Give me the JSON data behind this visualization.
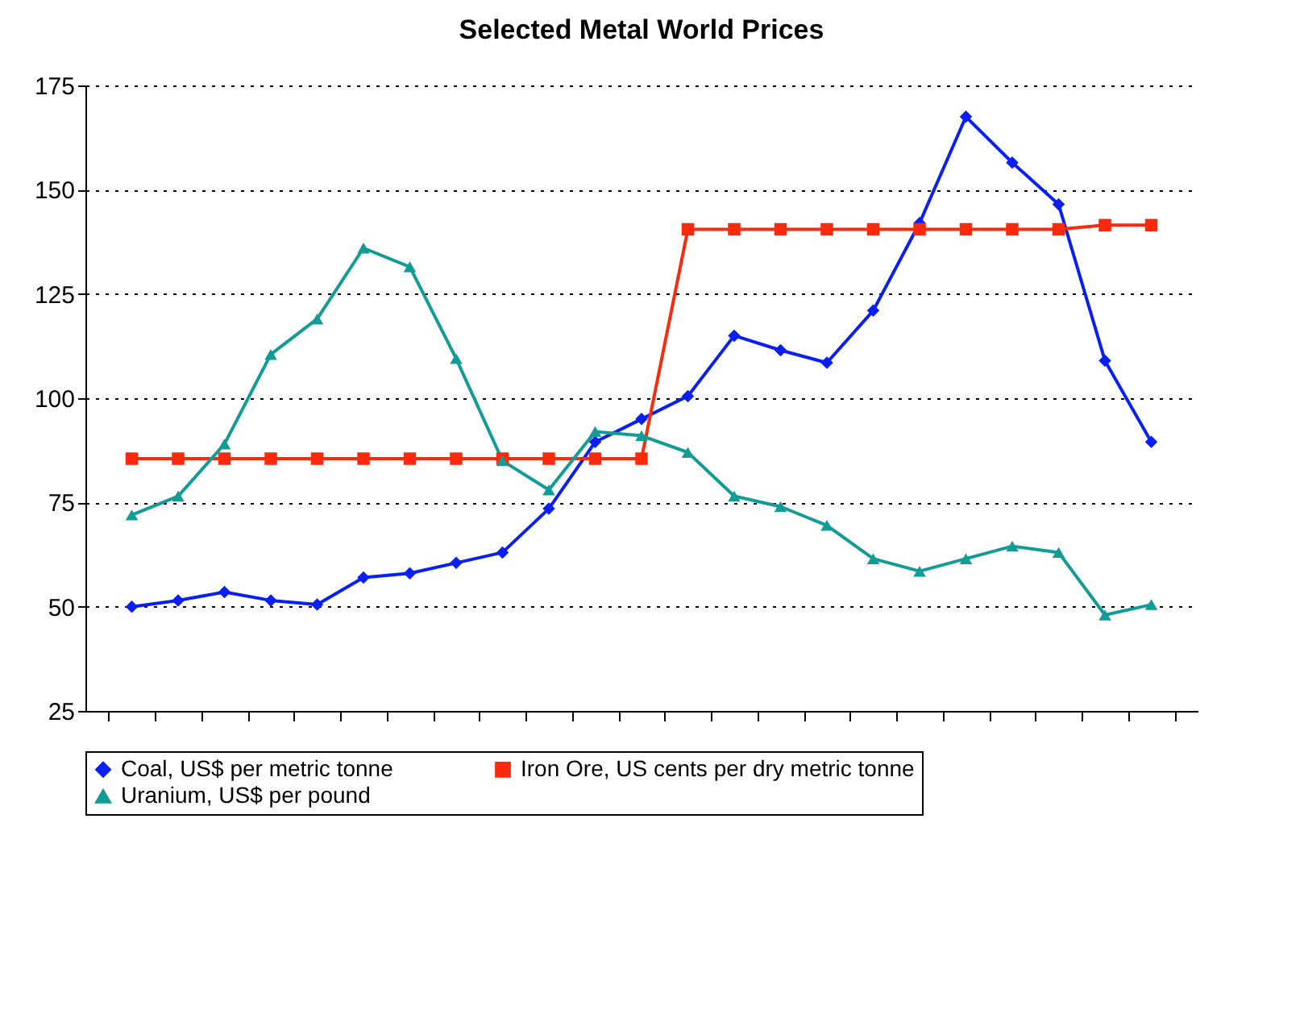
{
  "chart_data": {
    "type": "line",
    "title": "Selected Metal World Prices",
    "categories": [
      null,
      null,
      null,
      null,
      null,
      null,
      null,
      null,
      null,
      null,
      null,
      null,
      null,
      null,
      null,
      null,
      null,
      null,
      null,
      null,
      null,
      null,
      null
    ],
    "series": [
      {
        "name": "Coal, US$ per metric tonne",
        "color": "#0a1ff5",
        "marker": "diamond",
        "values": [
          50,
          51.5,
          53.5,
          51.5,
          50.5,
          57,
          58,
          60.5,
          63,
          73.5,
          89.5,
          95,
          100.5,
          115,
          111.5,
          108.5,
          121,
          142,
          167.5,
          156.5,
          146.5,
          109,
          89.5
        ]
      },
      {
        "name": "Iron Ore, US cents per dry metric tonne",
        "color": "#fb2a0c",
        "marker": "square",
        "values": [
          85.5,
          85.5,
          85.5,
          85.5,
          85.5,
          85.5,
          85.5,
          85.5,
          85.5,
          85.5,
          85.5,
          85.5,
          140.5,
          140.5,
          140.5,
          140.5,
          140.5,
          140.5,
          140.5,
          140.5,
          140.5,
          141.5,
          141.5
        ]
      },
      {
        "name": "Uranium,  US$ per pound",
        "color": "#119c98",
        "marker": "triangle",
        "values": [
          72,
          76.5,
          89,
          110.5,
          119,
          136,
          131.5,
          109.5,
          85,
          78,
          92,
          91,
          87,
          76.5,
          74,
          69.5,
          61.5,
          58.5,
          61.5,
          64.5,
          63,
          48,
          50.5
        ]
      }
    ],
    "ylim": [
      25,
      175
    ],
    "yticks": [
      25,
      50,
      75,
      100,
      125,
      150,
      175
    ],
    "grid": "y",
    "legend": "bottom",
    "tick_labels": "y",
    "line_style": "solid"
  }
}
